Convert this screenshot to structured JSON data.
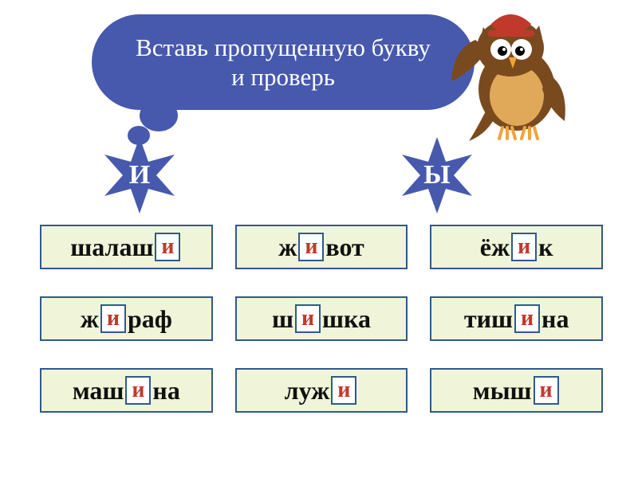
{
  "bubble": {
    "line1": "Вставь пропущенную букву",
    "line2": "и проверь",
    "bg": "#4759ad",
    "text_color": "#ffffff"
  },
  "stars": {
    "left_label": "И",
    "right_label": "Ы",
    "fill": "#4759ad",
    "label_color": "#ffffff"
  },
  "answer_letter": "и",
  "words": [
    {
      "pre": "шалаш",
      "post": ""
    },
    {
      "pre": "ж",
      "post": "вот"
    },
    {
      "pre": "ёж",
      "post": "к"
    },
    {
      "pre": "ж",
      "post": "раф"
    },
    {
      "pre": "ш",
      "post": "шка"
    },
    {
      "pre": "тиш",
      "post": "на"
    },
    {
      "pre": "маш",
      "post": "на"
    },
    {
      "pre": "луж",
      "post": ""
    },
    {
      "pre": "мыш",
      "post": ""
    }
  ],
  "style": {
    "word_bg": "#f0f4d8",
    "word_border": "#2f5a8a",
    "answer_bg": "#ffffff",
    "answer_color": "#c13a2a"
  },
  "owl": {
    "body": "#7a4a1f",
    "belly": "#e0a95a",
    "hat": "#c0392b",
    "eye": "#ffffff",
    "pupil": "#000000",
    "beak": "#f1a33a"
  }
}
